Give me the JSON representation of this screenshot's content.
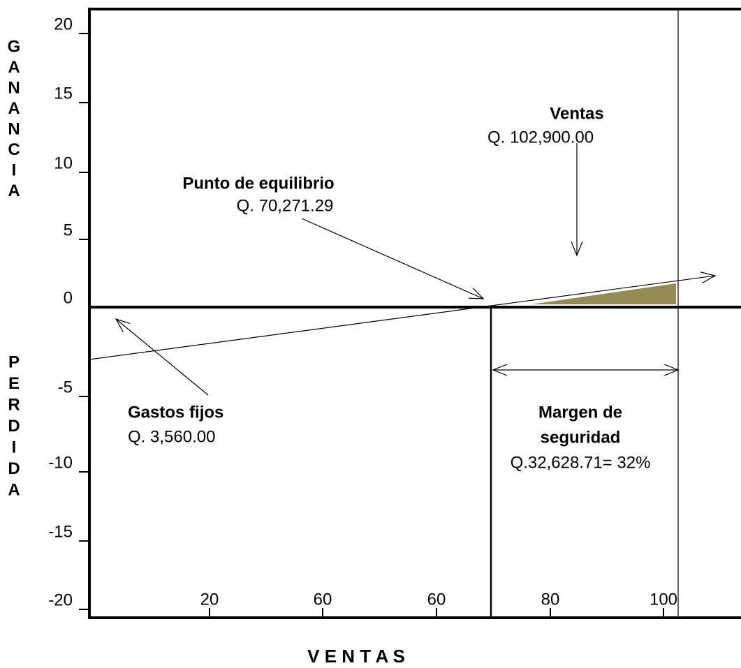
{
  "y_axis": {
    "ticks": [
      "20",
      "15",
      "10",
      "5",
      "0",
      "-5",
      "-10",
      "-15",
      "-20"
    ],
    "upper_label": [
      "G",
      "A",
      "N",
      "A",
      "N",
      "C",
      "I",
      "A"
    ],
    "lower_label": [
      "P",
      "E",
      "R",
      "D",
      "I",
      "D",
      "A"
    ]
  },
  "x_axis": {
    "ticks": [
      "20",
      "60",
      "60",
      "80",
      "100"
    ],
    "label": "V E N T A S"
  },
  "annotations": {
    "sales": {
      "title": "Ventas",
      "value": "Q. 102,900.00"
    },
    "break_even": {
      "title": "Punto de equilibrio",
      "value": "Q. 70,271.29"
    },
    "fixed_costs": {
      "title": "Gastos fijos",
      "value": "Q. 3,560.00"
    },
    "margin": {
      "title_1": "Margen de",
      "title_2": "seguridad",
      "value": "Q.32,628.71= 32%"
    }
  }
}
